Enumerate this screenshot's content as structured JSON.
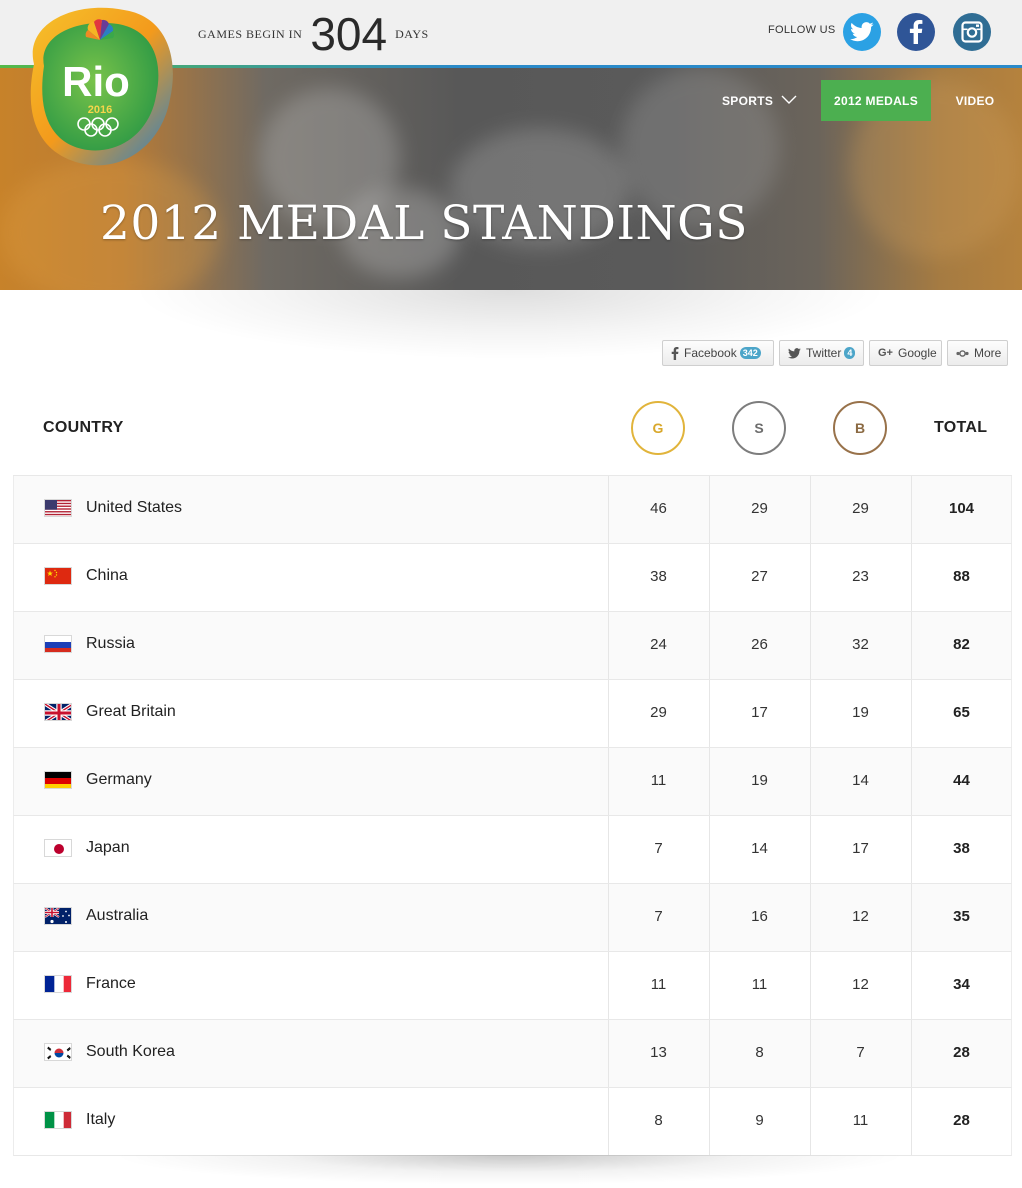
{
  "countdown": {
    "prefix": "GAMES BEGIN IN",
    "number": "304",
    "suffix": "DAYS"
  },
  "follow": {
    "label": "FOLLOW US",
    "icons": [
      "twitter-icon",
      "facebook-icon",
      "instagram-icon"
    ]
  },
  "nav": {
    "sports": "SPORTS",
    "medals": "2012 MEDALS",
    "video": "VIDEO"
  },
  "logo": {
    "text": "Rio",
    "year": "2016"
  },
  "hero": {
    "title": "2012 MEDAL STANDINGS"
  },
  "share": {
    "facebook": {
      "label": "Facebook",
      "count": "342"
    },
    "twitter": {
      "label": "Twitter",
      "count": "4"
    },
    "google": {
      "label": "Google"
    },
    "more": {
      "label": "More"
    }
  },
  "table": {
    "headers": {
      "country": "COUNTRY",
      "gold": "G",
      "silver": "S",
      "bronze": "B",
      "total": "TOTAL"
    },
    "rows": [
      {
        "country": "United States",
        "flag": "us-flag",
        "gold": "46",
        "silver": "29",
        "bronze": "29",
        "total": "104"
      },
      {
        "country": "China",
        "flag": "cn-flag",
        "gold": "38",
        "silver": "27",
        "bronze": "23",
        "total": "88"
      },
      {
        "country": "Russia",
        "flag": "ru-flag",
        "gold": "24",
        "silver": "26",
        "bronze": "32",
        "total": "82"
      },
      {
        "country": "Great Britain",
        "flag": "gb-flag",
        "gold": "29",
        "silver": "17",
        "bronze": "19",
        "total": "65"
      },
      {
        "country": "Germany",
        "flag": "de-flag",
        "gold": "11",
        "silver": "19",
        "bronze": "14",
        "total": "44"
      },
      {
        "country": "Japan",
        "flag": "jp-flag",
        "gold": "7",
        "silver": "14",
        "bronze": "17",
        "total": "38"
      },
      {
        "country": "Australia",
        "flag": "au-flag",
        "gold": "7",
        "silver": "16",
        "bronze": "12",
        "total": "35"
      },
      {
        "country": "France",
        "flag": "fr-flag",
        "gold": "11",
        "silver": "11",
        "bronze": "12",
        "total": "34"
      },
      {
        "country": "South Korea",
        "flag": "kr-flag",
        "gold": "13",
        "silver": "8",
        "bronze": "7",
        "total": "28"
      },
      {
        "country": "Italy",
        "flag": "it-flag",
        "gold": "8",
        "silver": "9",
        "bronze": "11",
        "total": "28"
      }
    ]
  },
  "colors": {
    "accent_green": "#4caf50",
    "gold": "#e1b43b",
    "silver": "#7d7d7d",
    "bronze": "#98724a",
    "twitter": "#2ba1e4",
    "facebook": "#2f5597",
    "instagram": "#2f6d94"
  }
}
